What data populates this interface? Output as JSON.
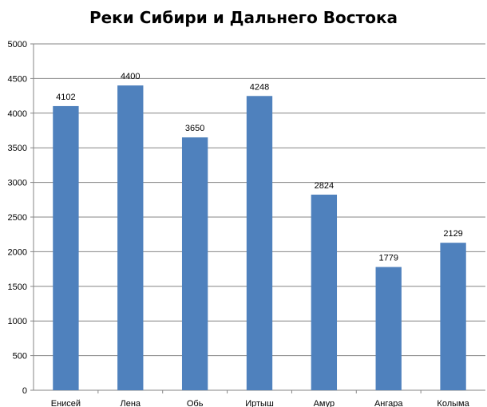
{
  "chart_data": {
    "type": "bar",
    "title": "Реки Сибири и Дальнего Востока",
    "xlabel": "",
    "ylabel": "",
    "categories": [
      "Енисей",
      "Лена",
      "Обь",
      "Иртыш",
      "Амур",
      "Ангара",
      "Колыма"
    ],
    "values": [
      4102,
      4400,
      3650,
      4248,
      2824,
      1779,
      2129
    ],
    "ylim": [
      0,
      5000
    ],
    "y_ticks": [
      0,
      500,
      1000,
      1500,
      2000,
      2500,
      3000,
      3500,
      4000,
      4500,
      5000
    ],
    "grid": true,
    "legend": "none",
    "bar_color": "#4F81BD",
    "gridline_color": "#868686"
  }
}
